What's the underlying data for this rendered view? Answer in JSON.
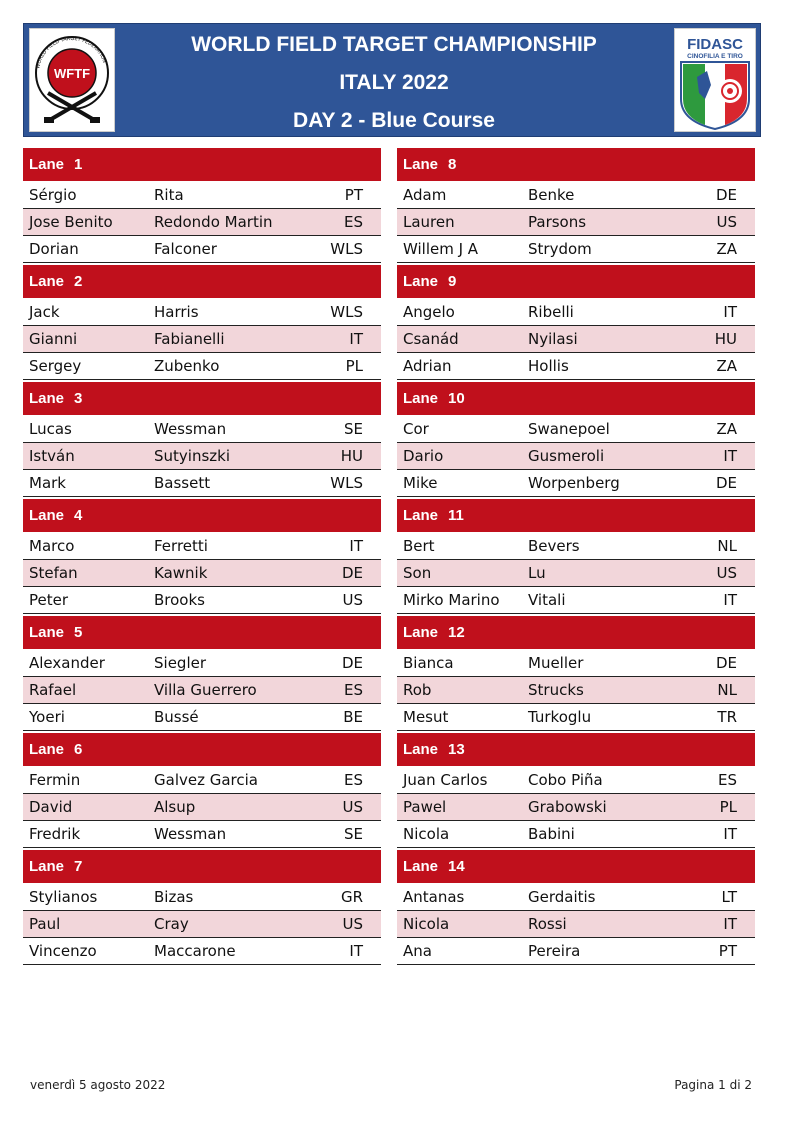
{
  "header": {
    "title_line1": "WORLD FIELD TARGET CHAMPIONSHIP",
    "title_line2": "ITALY 2022",
    "title_line3": "DAY 2 - Blue Course",
    "logo_left_text": "WFTF",
    "logo_left_ring_text": "WORLD FIELD TARGET FEDERATION",
    "logo_right_text": "FIDASC",
    "logo_right_subtext": "CINOFILIA E TIRO"
  },
  "lane_word": "Lane",
  "columns": [
    [
      {
        "num": "1",
        "rows": [
          [
            "Sérgio",
            "Rita",
            "PT"
          ],
          [
            "Jose Benito",
            "Redondo Martin",
            "ES"
          ],
          [
            "Dorian",
            "Falconer",
            "WLS"
          ]
        ]
      },
      {
        "num": "2",
        "rows": [
          [
            "Jack",
            "Harris",
            "WLS"
          ],
          [
            "Gianni",
            "Fabianelli",
            "IT"
          ],
          [
            "Sergey",
            "Zubenko",
            "PL"
          ]
        ]
      },
      {
        "num": "3",
        "rows": [
          [
            "Lucas",
            "Wessman",
            "SE"
          ],
          [
            "István",
            "Sutyinszki",
            "HU"
          ],
          [
            "Mark",
            "Bassett",
            "WLS"
          ]
        ]
      },
      {
        "num": "4",
        "rows": [
          [
            "Marco",
            "Ferretti",
            "IT"
          ],
          [
            "Stefan",
            "Kawnik",
            "DE"
          ],
          [
            "Peter",
            "Brooks",
            "US"
          ]
        ]
      },
      {
        "num": "5",
        "rows": [
          [
            "Alexander",
            "Siegler",
            "DE"
          ],
          [
            "Rafael",
            "Villa Guerrero",
            "ES"
          ],
          [
            "Yoeri",
            "Bussé",
            "BE"
          ]
        ]
      },
      {
        "num": "6",
        "rows": [
          [
            "Fermin",
            "Galvez Garcia",
            "ES"
          ],
          [
            "David",
            "Alsup",
            "US"
          ],
          [
            "Fredrik",
            "Wessman",
            "SE"
          ]
        ]
      },
      {
        "num": "7",
        "rows": [
          [
            "Stylianos",
            "Bizas",
            "GR"
          ],
          [
            "Paul",
            "Cray",
            "US"
          ],
          [
            "Vincenzo",
            "Maccarone",
            "IT"
          ]
        ]
      }
    ],
    [
      {
        "num": "8",
        "rows": [
          [
            "Adam",
            "Benke",
            "DE"
          ],
          [
            "Lauren",
            "Parsons",
            "US"
          ],
          [
            "Willem J A",
            "Strydom",
            "ZA"
          ]
        ]
      },
      {
        "num": "9",
        "rows": [
          [
            "Angelo",
            "Ribelli",
            "IT"
          ],
          [
            "Csanád",
            "Nyilasi",
            "HU"
          ],
          [
            "Adrian",
            "Hollis",
            "ZA"
          ]
        ]
      },
      {
        "num": "10",
        "rows": [
          [
            "Cor",
            "Swanepoel",
            "ZA"
          ],
          [
            "Dario",
            "Gusmeroli",
            "IT"
          ],
          [
            "Mike",
            "Worpenberg",
            "DE"
          ]
        ]
      },
      {
        "num": "11",
        "rows": [
          [
            "Bert",
            "Bevers",
            "NL"
          ],
          [
            "Son",
            "Lu",
            "US"
          ],
          [
            "Mirko Marino",
            "Vitali",
            "IT"
          ]
        ]
      },
      {
        "num": "12",
        "rows": [
          [
            "Bianca",
            "Mueller",
            "DE"
          ],
          [
            "Rob",
            "Strucks",
            "NL"
          ],
          [
            "Mesut",
            "Turkoglu",
            "TR"
          ]
        ]
      },
      {
        "num": "13",
        "rows": [
          [
            "Juan Carlos",
            "Cobo Piña",
            "ES"
          ],
          [
            "Pawel",
            "Grabowski",
            "PL"
          ],
          [
            "Nicola",
            "Babini",
            "IT"
          ]
        ]
      },
      {
        "num": "14",
        "rows": [
          [
            "Antanas",
            "Gerdaitis",
            "LT"
          ],
          [
            "Nicola",
            "Rossi",
            "IT"
          ],
          [
            "Ana",
            "Pereira",
            "PT"
          ]
        ]
      }
    ]
  ],
  "footer": {
    "date": "venerdì 5 agosto 2022",
    "page": "Pagina 1 di 2"
  },
  "colors": {
    "header_bg": "#2f5597",
    "lane_header_bg": "#c0101c",
    "alt_row_bg": "#f2d6da"
  }
}
